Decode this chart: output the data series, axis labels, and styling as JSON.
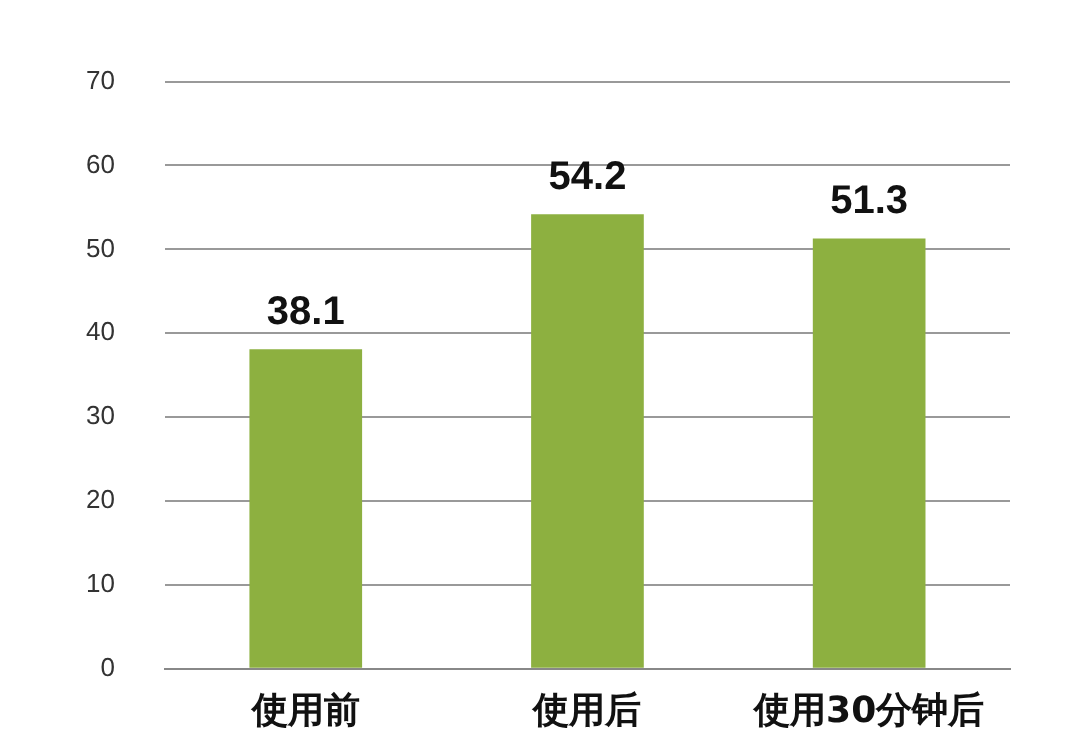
{
  "chart_data": {
    "type": "bar",
    "categories": [
      "使用前",
      "使用后",
      "使用30分钟后"
    ],
    "values": [
      38.1,
      54.2,
      51.3
    ],
    "color": "#8db040",
    "ylim": [
      0,
      70
    ],
    "yticks": [
      0,
      10,
      20,
      30,
      40,
      50,
      60,
      70
    ],
    "grid": "y",
    "data_labels": true,
    "legend": false
  }
}
